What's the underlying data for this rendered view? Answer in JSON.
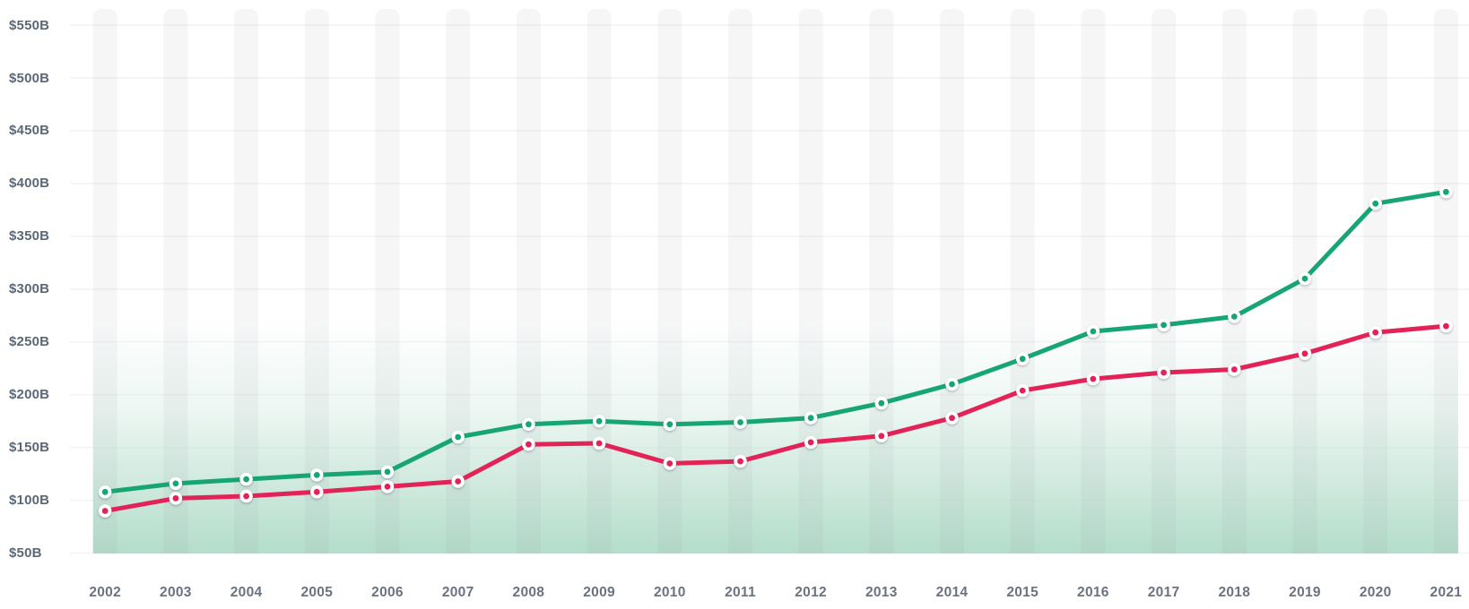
{
  "chart_data": {
    "type": "line",
    "title": "",
    "categories": [
      "2002",
      "2003",
      "2004",
      "2005",
      "2006",
      "2007",
      "2008",
      "2009",
      "2010",
      "2011",
      "2012",
      "2013",
      "2014",
      "2015",
      "2016",
      "2017",
      "2018",
      "2019",
      "2020",
      "2021"
    ],
    "series": [
      {
        "name": "green-series",
        "color": "#17a673",
        "values": [
          108,
          116,
          120,
          124,
          127,
          160,
          172,
          175,
          172,
          174,
          178,
          192,
          210,
          234,
          260,
          266,
          274,
          310,
          381,
          392
        ]
      },
      {
        "name": "pink-series",
        "color": "#e32358",
        "values": [
          90,
          102,
          104,
          108,
          113,
          118,
          153,
          154,
          135,
          137,
          155,
          161,
          178,
          204,
          215,
          221,
          224,
          239,
          259,
          265
        ]
      }
    ],
    "value_unit": "$ billions",
    "y_tick_values": [
      550,
      500,
      450,
      400,
      350,
      300,
      250,
      200,
      150,
      100,
      50
    ],
    "y_tick_labels": [
      "$550B",
      "$500B",
      "$450B",
      "$400B",
      "$350B",
      "$300B",
      "$250B",
      "$200B",
      "$150B",
      "$100B",
      "$50B"
    ],
    "ylim": [
      50,
      550
    ],
    "xlabel": "",
    "ylabel": "",
    "grid": "horizontal",
    "legend_position": "none",
    "style": {
      "grid_color": "#eef0f2",
      "year_band_color": "rgba(128,138,152,0.075)",
      "area_gradient_color": "#b4ddcb",
      "dot_fill": "#ffffff",
      "dot_shadow": "#475569",
      "y_label_color": "#5b6876",
      "x_label_color": "#6b7280",
      "background": "#ffffff"
    }
  }
}
